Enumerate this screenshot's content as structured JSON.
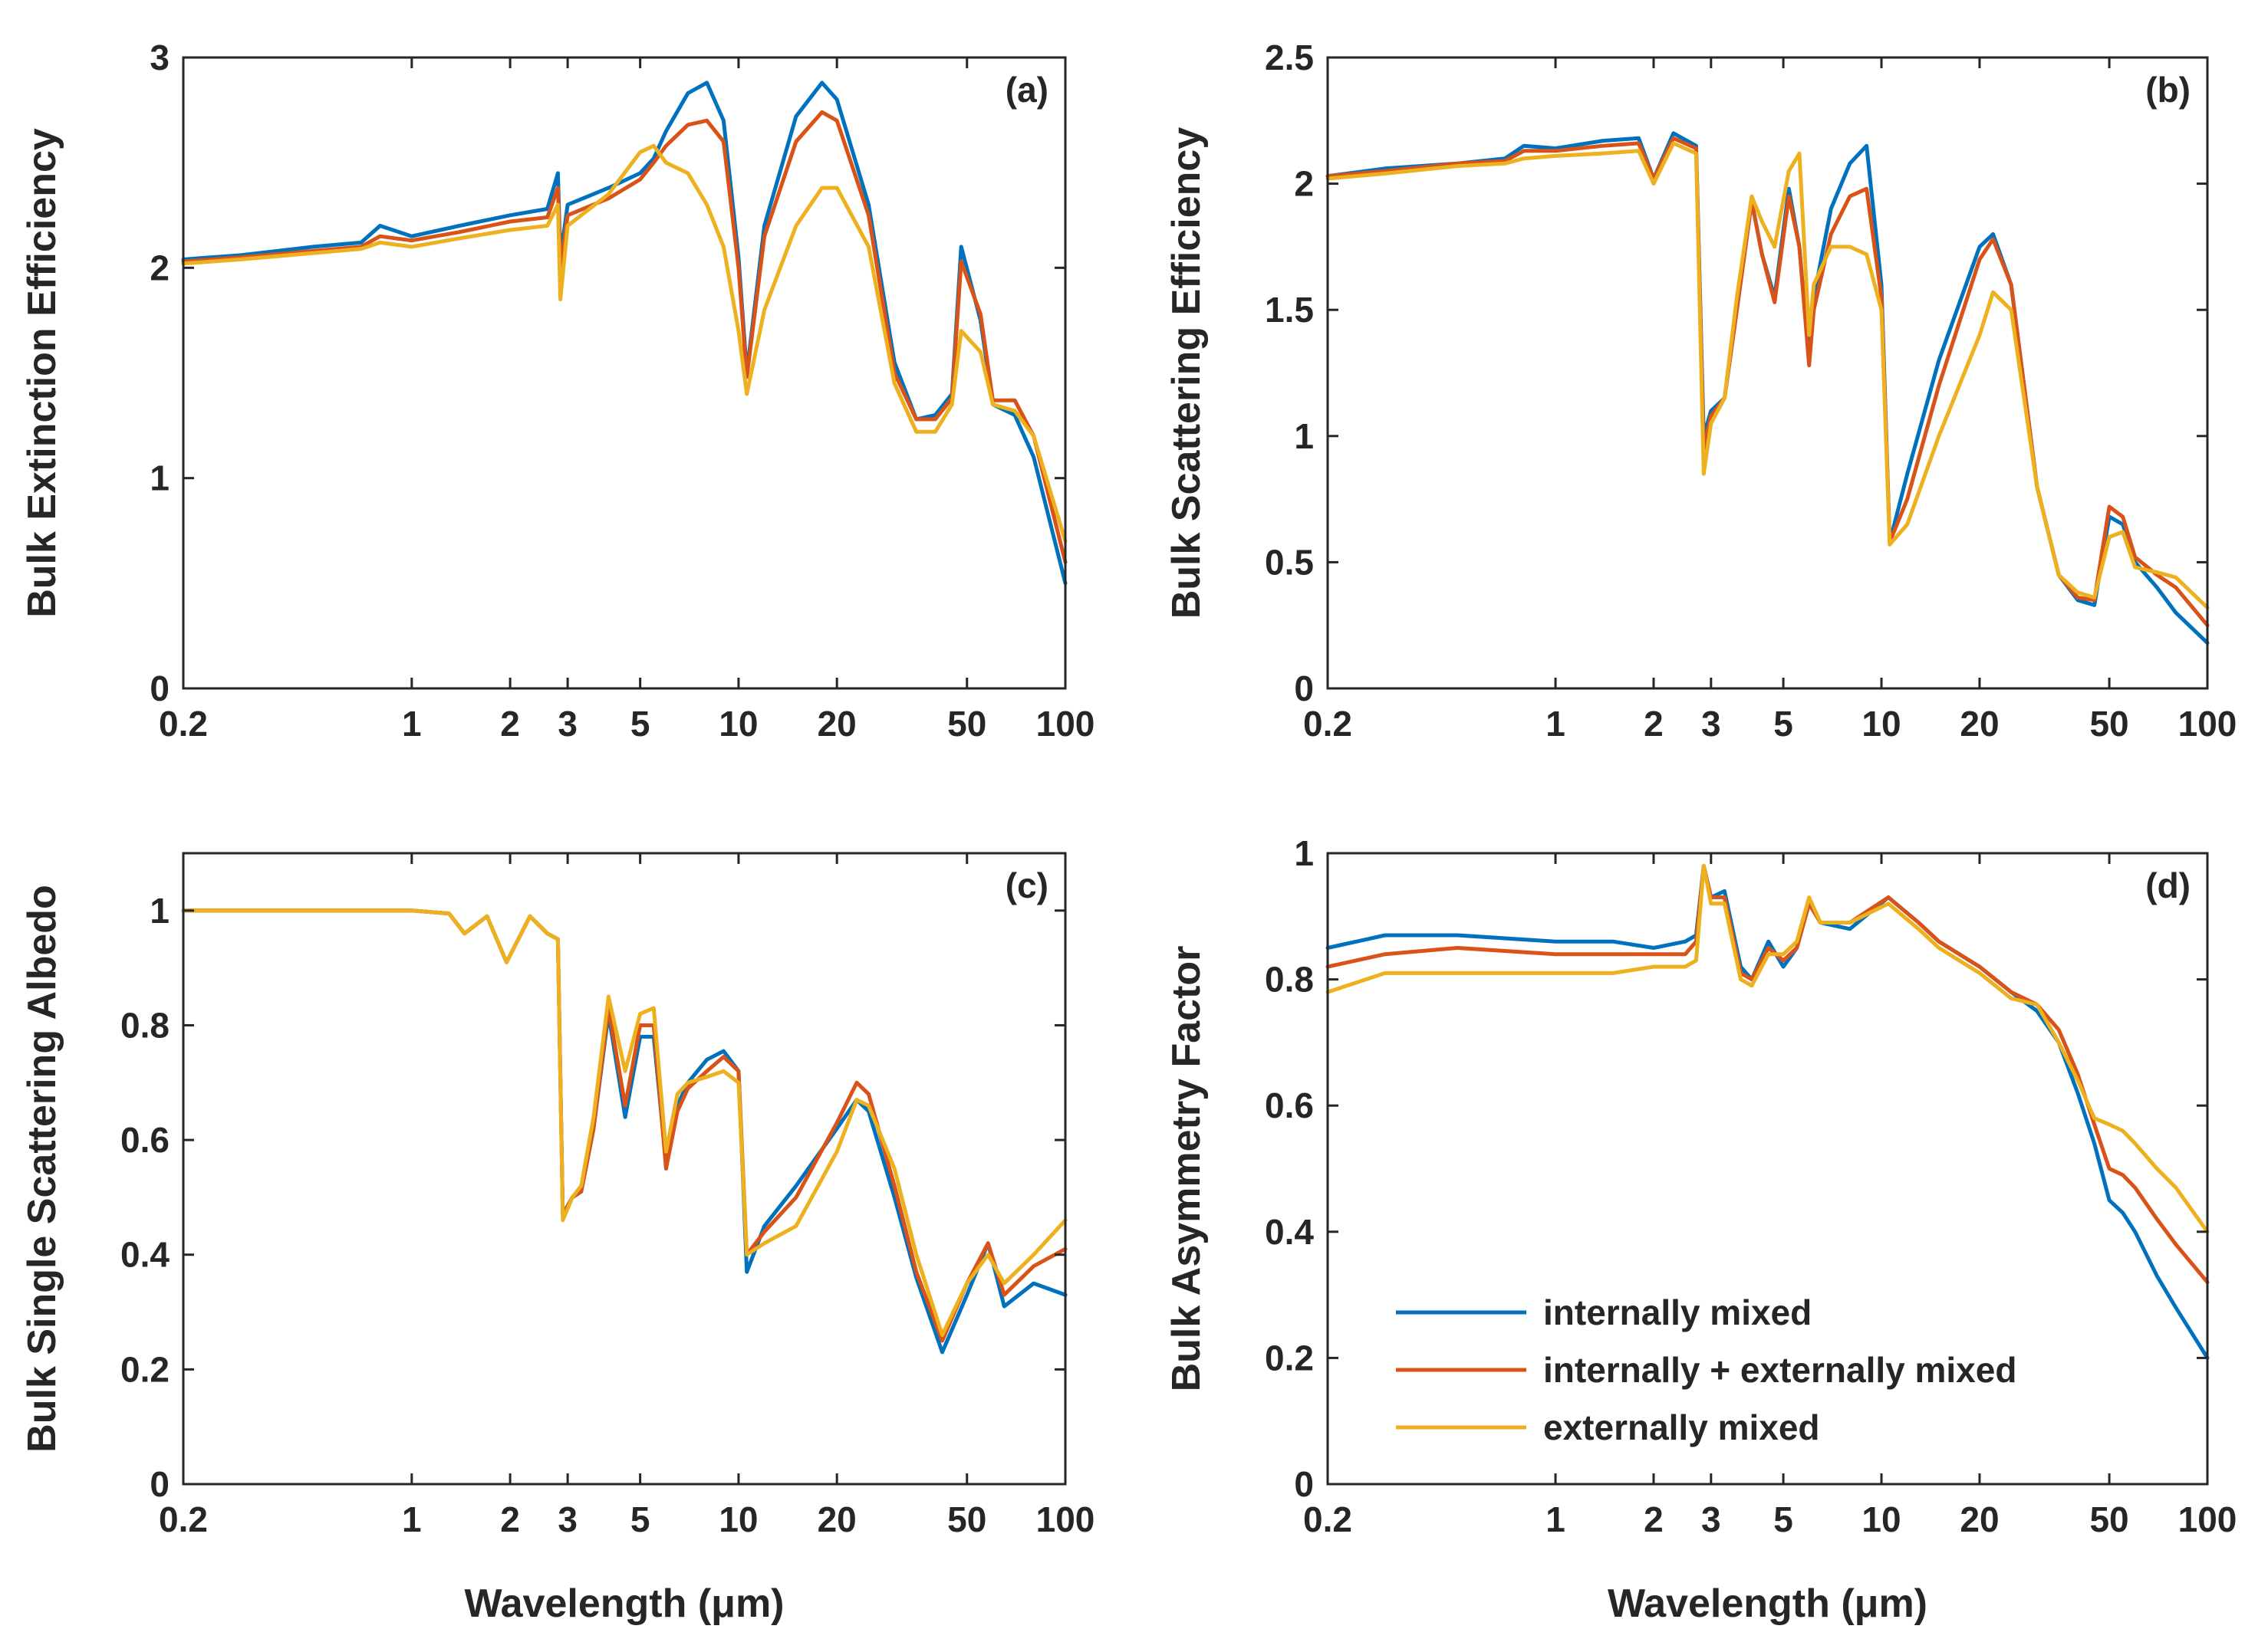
{
  "chart_data": [
    {
      "id": "a",
      "type": "line",
      "panel_label": "(a)",
      "xlabel": "",
      "ylabel": "Bulk Extinction Efficiency",
      "xscale": "log",
      "xlim": [
        0.2,
        100
      ],
      "ylim": [
        0,
        3
      ],
      "xticks": [
        0.2,
        1,
        2,
        3,
        5,
        10,
        20,
        50,
        100
      ],
      "xtick_labels": [
        "0.2",
        "1",
        "2",
        "3",
        "5",
        "10",
        "20",
        "50",
        "100"
      ],
      "yticks": [
        0,
        1,
        2,
        3
      ],
      "ytick_labels": [
        "0",
        "1",
        "2",
        "3"
      ],
      "x": [
        0.2,
        0.3,
        0.5,
        0.7,
        0.8,
        1.0,
        1.4,
        2.0,
        2.6,
        2.8,
        2.85,
        3.0,
        4.0,
        5.0,
        5.5,
        6.0,
        7.0,
        8.0,
        9.0,
        10.0,
        10.6,
        12.0,
        15.0,
        18.0,
        20.0,
        25.0,
        30.0,
        35.0,
        40.0,
        45.0,
        48.0,
        55.0,
        60.0,
        70.0,
        80.0,
        100.0
      ],
      "series": [
        {
          "name": "internally mixed",
          "color": "#0072BD",
          "values": [
            2.04,
            2.06,
            2.1,
            2.12,
            2.2,
            2.15,
            2.2,
            2.25,
            2.28,
            2.45,
            2.05,
            2.3,
            2.38,
            2.45,
            2.52,
            2.65,
            2.83,
            2.88,
            2.7,
            2.05,
            1.5,
            2.2,
            2.72,
            2.88,
            2.8,
            2.3,
            1.55,
            1.28,
            1.3,
            1.4,
            2.1,
            1.75,
            1.35,
            1.3,
            1.1,
            0.5
          ]
        },
        {
          "name": "internally + externally mixed",
          "color": "#D95319",
          "values": [
            2.03,
            2.05,
            2.08,
            2.1,
            2.15,
            2.13,
            2.17,
            2.22,
            2.24,
            2.38,
            2.0,
            2.25,
            2.33,
            2.42,
            2.5,
            2.58,
            2.68,
            2.7,
            2.6,
            2.0,
            1.48,
            2.15,
            2.6,
            2.74,
            2.7,
            2.25,
            1.5,
            1.28,
            1.28,
            1.38,
            2.03,
            1.78,
            1.37,
            1.37,
            1.2,
            0.6
          ]
        },
        {
          "name": "externally mixed",
          "color": "#EDB120",
          "values": [
            2.02,
            2.04,
            2.07,
            2.09,
            2.12,
            2.1,
            2.14,
            2.18,
            2.2,
            2.3,
            1.85,
            2.2,
            2.35,
            2.55,
            2.58,
            2.5,
            2.45,
            2.3,
            2.1,
            1.7,
            1.4,
            1.8,
            2.2,
            2.38,
            2.38,
            2.1,
            1.45,
            1.22,
            1.22,
            1.35,
            1.7,
            1.6,
            1.35,
            1.32,
            1.2,
            0.7
          ]
        }
      ]
    },
    {
      "id": "b",
      "type": "line",
      "panel_label": "(b)",
      "xlabel": "",
      "ylabel": "Bulk Scattering Efficiency",
      "xscale": "log",
      "xlim": [
        0.2,
        100
      ],
      "ylim": [
        0,
        2.5
      ],
      "xticks": [
        0.2,
        1,
        2,
        3,
        5,
        10,
        20,
        50,
        100
      ],
      "xtick_labels": [
        "0.2",
        "1",
        "2",
        "3",
        "5",
        "10",
        "20",
        "50",
        "100"
      ],
      "yticks": [
        0,
        0.5,
        1,
        1.5,
        2,
        2.5
      ],
      "ytick_labels": [
        "0",
        "0.5",
        "1",
        "1.5",
        "2",
        "2.5"
      ],
      "x": [
        0.2,
        0.3,
        0.5,
        0.7,
        0.8,
        1.0,
        1.4,
        1.8,
        2.0,
        2.3,
        2.7,
        2.85,
        3.0,
        3.3,
        3.6,
        4.0,
        4.3,
        4.7,
        5.2,
        5.6,
        6.0,
        6.2,
        7.0,
        8.0,
        9.0,
        10.0,
        10.6,
        12.0,
        15.0,
        20.0,
        22.0,
        25.0,
        30.0,
        35.0,
        40.0,
        45.0,
        50.0,
        55.0,
        60.0,
        70.0,
        80.0,
        100.0
      ],
      "series": [
        {
          "name": "internally mixed",
          "color": "#0072BD",
          "values": [
            2.03,
            2.06,
            2.08,
            2.1,
            2.15,
            2.14,
            2.17,
            2.18,
            2.02,
            2.2,
            2.15,
            1.0,
            1.1,
            1.15,
            1.5,
            1.93,
            1.72,
            1.55,
            1.98,
            1.75,
            1.3,
            1.55,
            1.9,
            2.08,
            2.15,
            1.6,
            0.58,
            0.85,
            1.3,
            1.75,
            1.8,
            1.6,
            0.8,
            0.45,
            0.35,
            0.33,
            0.68,
            0.65,
            0.5,
            0.4,
            0.3,
            0.18
          ]
        },
        {
          "name": "internally + externally mixed",
          "color": "#D95319",
          "values": [
            2.03,
            2.05,
            2.08,
            2.09,
            2.13,
            2.13,
            2.15,
            2.16,
            2.02,
            2.18,
            2.14,
            0.95,
            1.08,
            1.15,
            1.5,
            1.93,
            1.72,
            1.53,
            1.95,
            1.75,
            1.28,
            1.5,
            1.8,
            1.95,
            1.98,
            1.55,
            0.58,
            0.75,
            1.2,
            1.7,
            1.78,
            1.6,
            0.8,
            0.45,
            0.36,
            0.35,
            0.72,
            0.68,
            0.52,
            0.45,
            0.4,
            0.25
          ]
        },
        {
          "name": "externally mixed",
          "color": "#EDB120",
          "values": [
            2.02,
            2.04,
            2.07,
            2.08,
            2.1,
            2.11,
            2.12,
            2.13,
            2.0,
            2.16,
            2.12,
            0.85,
            1.05,
            1.15,
            1.55,
            1.95,
            1.85,
            1.75,
            2.05,
            2.12,
            1.4,
            1.6,
            1.75,
            1.75,
            1.72,
            1.5,
            0.57,
            0.65,
            1.0,
            1.4,
            1.57,
            1.5,
            0.8,
            0.45,
            0.38,
            0.36,
            0.6,
            0.62,
            0.48,
            0.46,
            0.44,
            0.32
          ]
        }
      ]
    },
    {
      "id": "c",
      "type": "line",
      "panel_label": "(c)",
      "xlabel": "Wavelength (μm)",
      "ylabel": "Bulk Single Scattering Albedo",
      "xscale": "log",
      "xlim": [
        0.2,
        100
      ],
      "ylim": [
        0,
        1.1
      ],
      "xticks": [
        0.2,
        1,
        2,
        3,
        5,
        10,
        20,
        50,
        100
      ],
      "xtick_labels": [
        "0.2",
        "1",
        "2",
        "3",
        "5",
        "10",
        "20",
        "50",
        "100"
      ],
      "yticks": [
        0,
        0.2,
        0.4,
        0.6,
        0.8,
        1
      ],
      "ytick_labels": [
        "0",
        "0.2",
        "0.4",
        "0.6",
        "0.8",
        "1"
      ],
      "x": [
        0.2,
        0.5,
        1.0,
        1.3,
        1.45,
        1.7,
        1.95,
        2.3,
        2.6,
        2.8,
        2.9,
        3.1,
        3.3,
        3.6,
        4.0,
        4.5,
        5.0,
        5.5,
        6.0,
        6.5,
        7.0,
        8.0,
        9.0,
        10.0,
        10.6,
        12.0,
        15.0,
        20.0,
        23.0,
        25.0,
        30.0,
        35.0,
        42.0,
        50.0,
        58.0,
        65.0,
        80.0,
        100.0
      ],
      "series": [
        {
          "name": "internally mixed",
          "color": "#0072BD",
          "values": [
            1.0,
            1.0,
            1.0,
            0.995,
            0.96,
            0.99,
            0.91,
            0.99,
            0.96,
            0.95,
            0.47,
            0.5,
            0.51,
            0.62,
            0.82,
            0.64,
            0.78,
            0.78,
            0.56,
            0.66,
            0.7,
            0.74,
            0.755,
            0.72,
            0.37,
            0.45,
            0.52,
            0.62,
            0.67,
            0.65,
            0.5,
            0.36,
            0.23,
            0.33,
            0.42,
            0.31,
            0.35,
            0.33
          ]
        },
        {
          "name": "internally + externally mixed",
          "color": "#D95319",
          "values": [
            1.0,
            1.0,
            1.0,
            0.995,
            0.96,
            0.99,
            0.91,
            0.99,
            0.96,
            0.95,
            0.47,
            0.5,
            0.51,
            0.62,
            0.83,
            0.66,
            0.8,
            0.8,
            0.55,
            0.65,
            0.69,
            0.72,
            0.745,
            0.72,
            0.4,
            0.44,
            0.5,
            0.63,
            0.7,
            0.68,
            0.52,
            0.37,
            0.25,
            0.35,
            0.42,
            0.33,
            0.38,
            0.41
          ]
        },
        {
          "name": "externally mixed",
          "color": "#EDB120",
          "values": [
            1.0,
            1.0,
            1.0,
            0.995,
            0.96,
            0.99,
            0.91,
            0.99,
            0.96,
            0.95,
            0.46,
            0.5,
            0.52,
            0.64,
            0.85,
            0.72,
            0.82,
            0.83,
            0.58,
            0.68,
            0.7,
            0.71,
            0.72,
            0.7,
            0.4,
            0.42,
            0.45,
            0.58,
            0.67,
            0.66,
            0.55,
            0.4,
            0.26,
            0.35,
            0.4,
            0.35,
            0.4,
            0.46
          ]
        }
      ]
    },
    {
      "id": "d",
      "type": "line",
      "panel_label": "(d)",
      "xlabel": "Wavelength (μm)",
      "ylabel": "Bulk Asymmetry Factor",
      "xscale": "log",
      "xlim": [
        0.2,
        100
      ],
      "ylim": [
        0,
        1
      ],
      "xticks": [
        0.2,
        1,
        2,
        3,
        5,
        10,
        20,
        50,
        100
      ],
      "xtick_labels": [
        "0.2",
        "1",
        "2",
        "3",
        "5",
        "10",
        "20",
        "50",
        "100"
      ],
      "yticks": [
        0,
        0.2,
        0.4,
        0.6,
        0.8,
        1
      ],
      "ytick_labels": [
        "0",
        "0.2",
        "0.4",
        "0.6",
        "0.8",
        "1"
      ],
      "legend_position": "bottom-left",
      "x": [
        0.2,
        0.3,
        0.5,
        1.0,
        1.5,
        2.0,
        2.5,
        2.7,
        2.85,
        3.0,
        3.3,
        3.7,
        4.0,
        4.5,
        5.0,
        5.5,
        6.0,
        6.5,
        8.0,
        10.5,
        13.0,
        15.0,
        20.0,
        25.0,
        30.0,
        35.0,
        40.0,
        45.0,
        50.0,
        55.0,
        60.0,
        70.0,
        80.0,
        100.0
      ],
      "series": [
        {
          "name": "internally mixed",
          "color": "#0072BD",
          "values": [
            0.85,
            0.87,
            0.87,
            0.86,
            0.86,
            0.85,
            0.86,
            0.87,
            0.98,
            0.93,
            0.94,
            0.82,
            0.8,
            0.86,
            0.82,
            0.85,
            0.92,
            0.89,
            0.88,
            0.93,
            0.89,
            0.86,
            0.82,
            0.78,
            0.75,
            0.7,
            0.62,
            0.54,
            0.45,
            0.43,
            0.4,
            0.33,
            0.28,
            0.2
          ]
        },
        {
          "name": "internally + externally mixed",
          "color": "#D95319",
          "values": [
            0.82,
            0.84,
            0.85,
            0.84,
            0.84,
            0.84,
            0.84,
            0.86,
            0.98,
            0.93,
            0.93,
            0.81,
            0.8,
            0.85,
            0.83,
            0.85,
            0.92,
            0.89,
            0.89,
            0.93,
            0.89,
            0.86,
            0.82,
            0.78,
            0.76,
            0.72,
            0.65,
            0.57,
            0.5,
            0.49,
            0.47,
            0.42,
            0.38,
            0.32
          ]
        },
        {
          "name": "externally mixed",
          "color": "#EDB120",
          "values": [
            0.78,
            0.81,
            0.81,
            0.81,
            0.81,
            0.82,
            0.82,
            0.83,
            0.98,
            0.92,
            0.92,
            0.8,
            0.79,
            0.84,
            0.84,
            0.86,
            0.93,
            0.89,
            0.89,
            0.92,
            0.88,
            0.85,
            0.81,
            0.77,
            0.76,
            0.7,
            0.64,
            0.58,
            0.57,
            0.56,
            0.54,
            0.5,
            0.47,
            0.4
          ]
        }
      ]
    }
  ]
}
